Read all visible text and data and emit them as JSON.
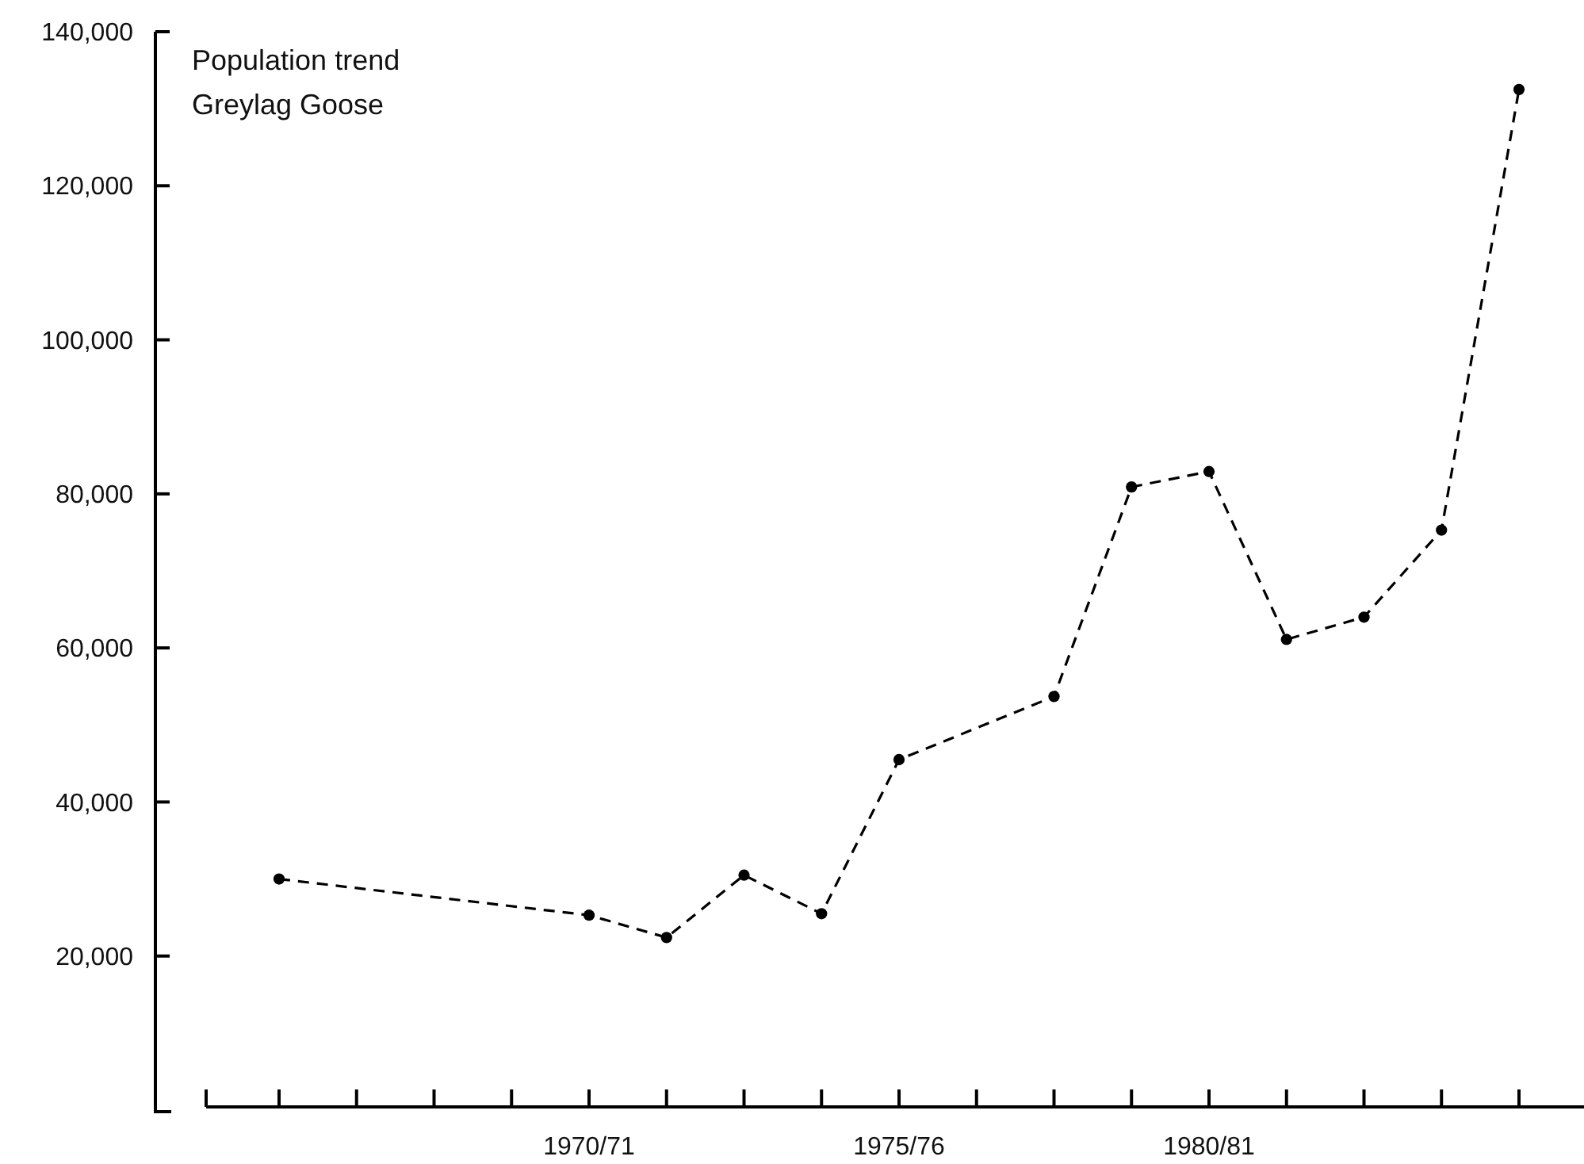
{
  "chart_data": {
    "type": "line",
    "title": "Population trend",
    "subtitle": "Greylag Goose",
    "categories": [
      null,
      null,
      null,
      null,
      "1970/71",
      null,
      null,
      null,
      "1975/76",
      null,
      null,
      null,
      "1980/81",
      null,
      null,
      null,
      null
    ],
    "series": [
      {
        "color": "#000000",
        "values": [
          30000,
          null,
          null,
          null,
          25300,
          22400,
          30500,
          25500,
          45500,
          null,
          53700,
          80900,
          82900,
          61100,
          64000,
          75300,
          132500
        ]
      }
    ],
    "ylim": [
      0,
      140000
    ],
    "yticks": [
      {
        "value": 20000,
        "label": "20,000"
      },
      {
        "value": 40000,
        "label": "40,000"
      },
      {
        "value": 60000,
        "label": "60,000"
      },
      {
        "value": 80000,
        "label": "80,000"
      },
      {
        "value": 100000,
        "label": "100,000"
      },
      {
        "value": 120000,
        "label": "120,000"
      },
      {
        "value": 140000,
        "label": "140,000"
      }
    ],
    "marker": "circle",
    "line_style": "dashed"
  }
}
